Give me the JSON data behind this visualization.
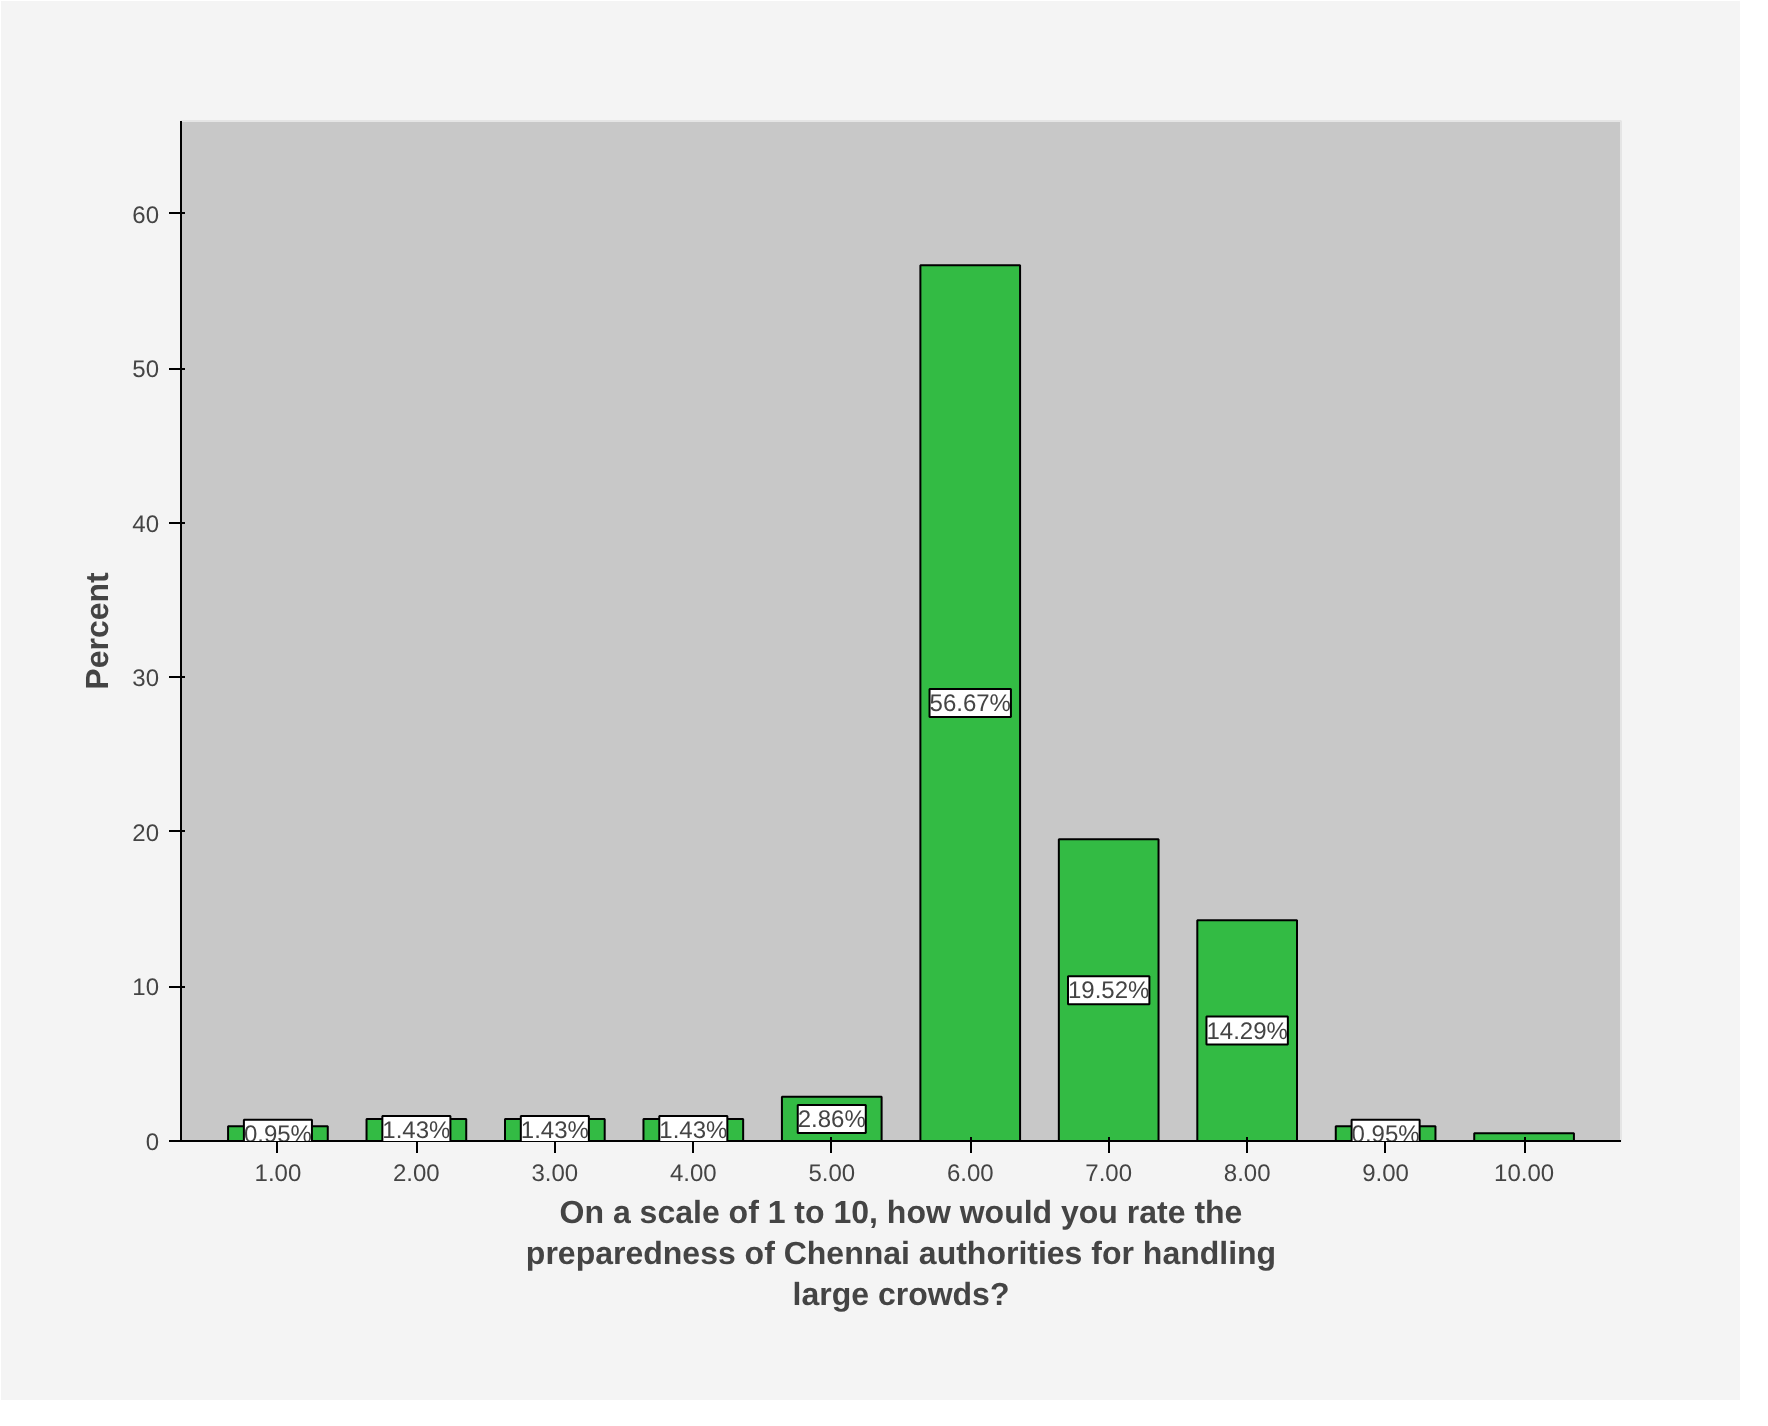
{
  "chart_data": {
    "type": "bar",
    "xlabel": "On a scale of 1 to 10, how would you rate the preparedness of Chennai authorities for handling large crowds?",
    "ylabel": "Percent",
    "categories": [
      "1.00",
      "2.00",
      "3.00",
      "4.00",
      "5.00",
      "6.00",
      "7.00",
      "8.00",
      "9.00",
      "10.00"
    ],
    "values": [
      0.95,
      1.43,
      1.43,
      1.43,
      2.86,
      56.67,
      19.52,
      14.29,
      0.95,
      0.5
    ],
    "value_labels": [
      "0.95%",
      "1.43%",
      "1.43%",
      "1.43%",
      "2.86%",
      "56.67%",
      "19.52%",
      "14.29%",
      "0.95%",
      null
    ],
    "color": "#33bb44",
    "ylim": [
      0,
      66
    ],
    "yticks": [
      0,
      10,
      20,
      30,
      40,
      50,
      60
    ],
    "grid": false
  }
}
